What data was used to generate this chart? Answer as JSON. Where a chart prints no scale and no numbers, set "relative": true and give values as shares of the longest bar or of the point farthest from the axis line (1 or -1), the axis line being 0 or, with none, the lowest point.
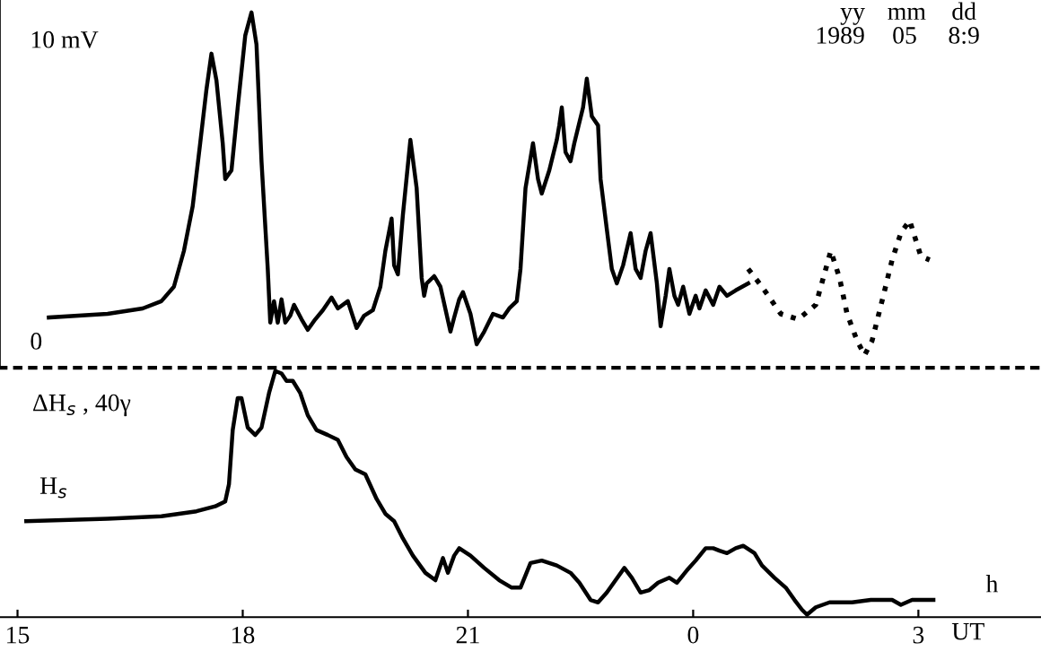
{
  "chart_data": [
    {
      "type": "line",
      "xlim": [
        "1989-05-08T14:46",
        "1989-05-09T04:38"
      ],
      "ylim": [
        -0.9,
        11.3
      ],
      "yticks": [
        {
          "value": 0,
          "label": "0"
        },
        {
          "value": 10,
          "label": "10 mV"
        }
      ],
      "tick_labels": "y",
      "annotations": [
        "yy",
        "mm",
        "dd",
        "1989",
        "05",
        "8:9"
      ],
      "series": [
        {
          "color": "#000000",
          "line_style": "solid",
          "x": [
            "1989-05-08T15:25",
            "1989-05-08T16:12",
            "1989-05-08T16:40",
            "1989-05-08T16:55",
            "1989-05-08T17:05",
            "1989-05-08T17:13",
            "1989-05-08T17:20",
            "1989-05-08T17:26",
            "1989-05-08T17:31",
            "1989-05-08T17:35",
            "1989-05-08T17:39",
            "1989-05-08T17:44",
            "1989-05-08T17:46",
            "1989-05-08T17:51",
            "1989-05-08T17:56",
            "1989-05-08T18:02",
            "1989-05-08T18:07",
            "1989-05-08T18:11",
            "1989-05-08T18:15",
            "1989-05-08T18:20",
            "1989-05-08T18:22",
            "1989-05-08T18:25",
            "1989-05-08T18:28",
            "1989-05-08T18:31",
            "1989-05-08T18:34",
            "1989-05-08T18:38",
            "1989-05-08T18:41",
            "1989-05-08T18:47",
            "1989-05-08T18:52",
            "1989-05-08T18:58",
            "1989-05-08T19:04",
            "1989-05-08T19:11",
            "1989-05-08T19:16",
            "1989-05-08T19:24",
            "1989-05-08T19:31",
            "1989-05-08T19:37",
            "1989-05-08T19:44",
            "1989-05-08T19:50",
            "1989-05-08T19:54",
            "1989-05-08T19:59",
            "1989-05-08T20:01",
            "1989-05-08T20:04",
            "1989-05-08T20:08",
            "1989-05-08T20:14",
            "1989-05-08T20:19",
            "1989-05-08T20:23",
            "1989-05-08T20:25",
            "1989-05-08T20:27",
            "1989-05-08T20:33",
            "1989-05-08T20:38",
            "1989-05-08T20:46",
            "1989-05-08T20:49",
            "1989-05-08T20:53",
            "1989-05-08T20:56",
            "1989-05-08T21:02",
            "1989-05-08T21:07",
            "1989-05-08T21:13",
            "1989-05-08T21:20",
            "1989-05-08T21:28",
            "1989-05-08T21:33",
            "1989-05-08T21:39",
            "1989-05-08T21:42",
            "1989-05-08T21:46",
            "1989-05-08T21:52",
            "1989-05-08T21:56",
            "1989-05-08T21:59",
            "1989-05-08T22:05",
            "1989-05-08T22:11",
            "1989-05-08T22:13",
            "1989-05-08T22:15",
            "1989-05-08T22:18",
            "1989-05-08T22:22",
            "1989-05-08T22:25",
            "1989-05-08T22:32",
            "1989-05-08T22:35",
            "1989-05-08T22:39",
            "1989-05-08T22:44",
            "1989-05-08T22:46",
            "1989-05-08T22:51",
            "1989-05-08T22:55",
            "1989-05-08T22:59",
            "1989-05-08T23:04",
            "1989-05-08T23:10",
            "1989-05-08T23:14",
            "1989-05-08T23:18",
            "1989-05-08T23:22",
            "1989-05-08T23:26",
            "1989-05-08T23:31",
            "1989-05-08T23:34",
            "1989-05-08T23:38",
            "1989-05-08T23:41",
            "1989-05-08T23:45",
            "1989-05-08T23:48",
            "1989-05-08T23:52",
            "1989-05-08T23:57",
            "1989-05-09T00:02",
            "1989-05-09T00:05",
            "1989-05-09T00:10",
            "1989-05-09T00:16",
            "1989-05-09T00:21",
            "1989-05-09T00:27",
            "1989-05-09T00:34",
            "1989-05-09T00:44"
          ],
          "values": [
            0.77,
            0.89,
            1.07,
            1.31,
            1.79,
            2.98,
            4.46,
            6.55,
            8.33,
            9.52,
            8.63,
            6.55,
            5.36,
            5.65,
            7.74,
            10.12,
            10.89,
            9.82,
            5.95,
            2.38,
            0.6,
            1.31,
            0.6,
            1.37,
            0.6,
            0.83,
            1.19,
            0.71,
            0.36,
            0.71,
            1.01,
            1.43,
            1.07,
            1.31,
            0.42,
            0.83,
            1.01,
            1.79,
            2.98,
            4.05,
            2.5,
            2.2,
            4.17,
            6.66,
            5.06,
            2.08,
            1.49,
            1.9,
            2.14,
            1.79,
            0.3,
            0.77,
            1.37,
            1.61,
            0.89,
            -0.12,
            0.3,
            0.89,
            0.77,
            1.07,
            1.31,
            2.38,
            5.06,
            6.55,
            5.36,
            4.88,
            5.65,
            6.66,
            7.14,
            7.74,
            6.25,
            5.95,
            6.55,
            7.74,
            8.69,
            7.44,
            7.14,
            5.36,
            3.69,
            2.38,
            1.9,
            2.5,
            3.57,
            2.38,
            2.08,
            2.98,
            3.57,
            1.9,
            0.48,
            1.49,
            2.38,
            1.49,
            1.19,
            1.79,
            0.89,
            1.49,
            1.07,
            1.67,
            1.19,
            1.79,
            1.49,
            1.67,
            1.9
          ]
        },
        {
          "color": "#000000",
          "line_style": "dotted",
          "x": [
            "1989-05-09T00:44",
            "1989-05-09T00:55",
            "1989-05-09T01:10",
            "1989-05-09T01:24",
            "1989-05-09T01:38",
            "1989-05-09T01:46",
            "1989-05-09T01:50",
            "1989-05-09T01:57",
            "1989-05-09T02:03",
            "1989-05-09T02:11",
            "1989-05-09T02:17",
            "1989-05-09T02:23",
            "1989-05-09T02:32",
            "1989-05-09T02:39",
            "1989-05-09T02:46",
            "1989-05-09T02:53",
            "1989-05-09T03:02",
            "1989-05-09T03:09"
          ],
          "values": [
            2.38,
            1.79,
            0.89,
            0.71,
            1.19,
            2.38,
            2.98,
            2.08,
            0.89,
            0.0,
            -0.48,
            0.0,
            1.49,
            2.68,
            3.57,
            3.99,
            2.8,
            2.68
          ]
        }
      ]
    },
    {
      "type": "line",
      "relative": true,
      "xlim": [
        "1989-05-08T14:46",
        "1989-05-09T04:38"
      ],
      "xticks": [
        {
          "value": "1989-05-08T15:00",
          "label": "15"
        },
        {
          "value": "1989-05-08T18:00",
          "label": "18"
        },
        {
          "value": "1989-05-08T21:00",
          "label": "21"
        },
        {
          "value": "1989-05-09T00:00",
          "label": "0"
        },
        {
          "value": "1989-05-09T03:00",
          "label": "3"
        }
      ],
      "tick_labels": "x",
      "xlabel": "UT",
      "annotations": [
        "ΔH$_{s}$ , 40γ",
        "H$_{s}$",
        "h"
      ],
      "series": [
        {
          "color": "#000000",
          "line_style": "solid",
          "x": [
            "1989-05-08T15:07",
            "1989-05-08T16:12",
            "1989-05-08T16:55",
            "1989-05-08T17:23",
            "1989-05-08T17:38",
            "1989-05-08T17:46",
            "1989-05-08T17:49",
            "1989-05-08T17:52",
            "1989-05-08T17:56",
            "1989-05-08T17:59",
            "1989-05-08T18:04",
            "1989-05-08T18:10",
            "1989-05-08T18:15",
            "1989-05-08T18:21",
            "1989-05-08T18:26",
            "1989-05-08T18:31",
            "1989-05-08T18:35",
            "1989-05-08T18:40",
            "1989-05-08T18:46",
            "1989-05-08T18:52",
            "1989-05-08T18:59",
            "1989-05-08T19:08",
            "1989-05-08T19:16",
            "1989-05-08T19:23",
            "1989-05-08T19:30",
            "1989-05-08T19:38",
            "1989-05-08T19:47",
            "1989-05-08T19:54",
            "1989-05-08T20:01",
            "1989-05-08T20:08",
            "1989-05-08T20:16",
            "1989-05-08T20:26",
            "1989-05-08T20:34",
            "1989-05-08T20:40",
            "1989-05-08T20:44",
            "1989-05-08T20:49",
            "1989-05-08T20:53",
            "1989-05-08T21:02",
            "1989-05-08T21:13",
            "1989-05-08T21:25",
            "1989-05-08T21:35",
            "1989-05-08T21:42",
            "1989-05-08T21:50",
            "1989-05-08T21:59",
            "1989-05-08T22:11",
            "1989-05-08T22:22",
            "1989-05-08T22:29",
            "1989-05-08T22:38",
            "1989-05-08T22:44",
            "1989-05-08T22:51",
            "1989-05-08T22:58",
            "1989-05-08T23:05",
            "1989-05-08T23:11",
            "1989-05-08T23:18",
            "1989-05-08T23:25",
            "1989-05-08T23:32",
            "1989-05-08T23:41",
            "1989-05-08T23:47",
            "1989-05-08T23:55",
            "1989-05-09T00:02",
            "1989-05-09T00:10",
            "1989-05-09T00:16",
            "1989-05-09T00:21",
            "1989-05-09T00:27",
            "1989-05-09T00:34",
            "1989-05-09T00:40",
            "1989-05-09T00:49",
            "1989-05-09T00:55",
            "1989-05-09T01:05",
            "1989-05-09T01:14",
            "1989-05-09T01:21",
            "1989-05-09T01:27",
            "1989-05-09T01:31",
            "1989-05-09T01:38",
            "1989-05-09T01:49",
            "1989-05-09T02:07",
            "1989-05-09T02:22",
            "1989-05-09T02:29",
            "1989-05-09T02:39",
            "1989-05-09T02:46",
            "1989-05-09T02:55",
            "1989-05-09T03:02",
            "1989-05-09T03:12"
          ],
          "values": [
            0.39,
            0.4,
            0.41,
            0.43,
            0.45,
            0.47,
            0.54,
            0.76,
            0.89,
            0.89,
            0.77,
            0.74,
            0.77,
            0.91,
            1.0,
            0.99,
            0.96,
            0.96,
            0.91,
            0.82,
            0.76,
            0.74,
            0.72,
            0.65,
            0.6,
            0.58,
            0.48,
            0.42,
            0.39,
            0.32,
            0.25,
            0.18,
            0.15,
            0.24,
            0.18,
            0.25,
            0.28,
            0.25,
            0.2,
            0.15,
            0.12,
            0.12,
            0.22,
            0.23,
            0.21,
            0.18,
            0.14,
            0.07,
            0.06,
            0.1,
            0.15,
            0.2,
            0.16,
            0.1,
            0.11,
            0.14,
            0.16,
            0.14,
            0.19,
            0.23,
            0.28,
            0.28,
            0.27,
            0.26,
            0.28,
            0.29,
            0.26,
            0.21,
            0.16,
            0.12,
            0.07,
            0.03,
            0.01,
            0.04,
            0.06,
            0.06,
            0.07,
            0.07,
            0.07,
            0.05,
            0.07,
            0.07,
            0.07
          ]
        }
      ]
    }
  ]
}
